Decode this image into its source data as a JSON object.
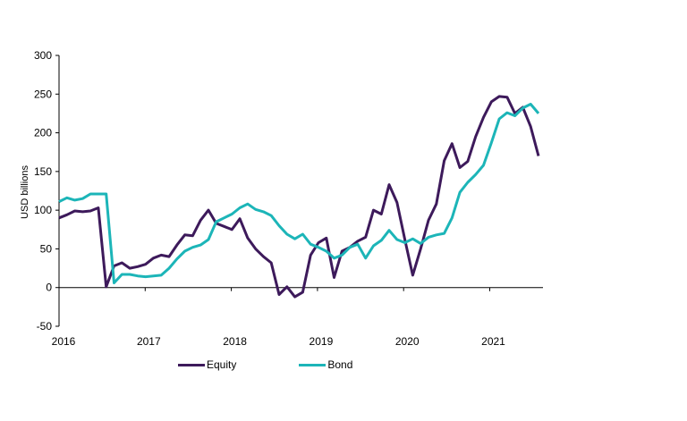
{
  "chart_data": {
    "type": "line",
    "title": "",
    "xlabel": "",
    "ylabel": "USD billions",
    "ylim": [
      -50,
      300
    ],
    "yticks": [
      "300",
      "250",
      "200",
      "150",
      "100",
      "50",
      "0",
      "-50"
    ],
    "ytick_values": [
      300,
      250,
      200,
      150,
      100,
      50,
      0,
      -50
    ],
    "xticks": [
      "2016",
      "2017",
      "2018",
      "2019",
      "2020",
      "2021"
    ],
    "x_start": "2016-01",
    "x_frequency": "monthly",
    "grid": false,
    "legend_position": "bottom",
    "series": [
      {
        "name": "Equity",
        "color": "#3d1a5b",
        "values": [
          90,
          94,
          99,
          98,
          99,
          103,
          1,
          28,
          32,
          25,
          27,
          30,
          38,
          42,
          40,
          55,
          68,
          67,
          87,
          100,
          83,
          79,
          75,
          89,
          64,
          50,
          40,
          32,
          -9,
          1,
          -12,
          -6,
          42,
          58,
          64,
          13,
          47,
          52,
          60,
          65,
          100,
          95,
          133,
          110,
          62,
          16,
          50,
          87,
          108,
          164,
          186,
          155,
          163,
          195,
          220,
          240,
          247,
          246,
          225,
          233,
          208,
          170
        ]
      },
      {
        "name": "Bond",
        "color": "#1cb5b8",
        "values": [
          111,
          116,
          113,
          115,
          121,
          121,
          121,
          6,
          17,
          17,
          15,
          14,
          15,
          16,
          25,
          37,
          47,
          52,
          55,
          62,
          85,
          90,
          95,
          103,
          108,
          101,
          98,
          93,
          80,
          69,
          63,
          69,
          56,
          52,
          47,
          38,
          42,
          52,
          56,
          38,
          54,
          61,
          74,
          62,
          58,
          63,
          57,
          65,
          68,
          70,
          90,
          123,
          136,
          146,
          158,
          187,
          218,
          226,
          222,
          232,
          237,
          225
        ]
      }
    ]
  }
}
